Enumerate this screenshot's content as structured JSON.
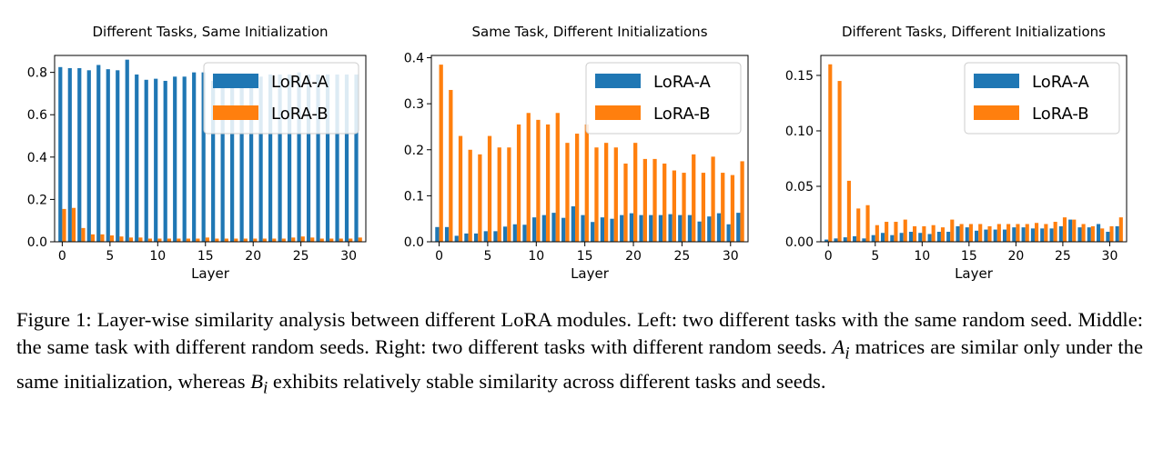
{
  "figure": {
    "caption": {
      "label": "Figure 1:",
      "text": "Layer-wise similarity analysis between different LoRA modules. Left: two different tasks with the same random seed. Middle: the same task with different random seeds. Right: two different tasks with different random seeds.",
      "a_var": "A",
      "a_sub": "i",
      "mid": " matrices are similar only under the same initialization, whereas ",
      "b_var": "B",
      "b_sub": "i",
      "end": " exhibits relatively stable similarity across different tasks and seeds."
    }
  },
  "colors": {
    "lora_a": "#1f77b4",
    "lora_b": "#ff7f0e"
  },
  "chart_data": [
    {
      "type": "bar",
      "title": "Different Tasks, Same Initialization",
      "xlabel": "Layer",
      "ylabel": "",
      "x": [
        0,
        1,
        2,
        3,
        4,
        5,
        6,
        7,
        8,
        9,
        10,
        11,
        12,
        13,
        14,
        15,
        16,
        17,
        18,
        19,
        20,
        21,
        22,
        23,
        24,
        25,
        26,
        27,
        28,
        29,
        30,
        31
      ],
      "xticks": [
        0,
        5,
        10,
        15,
        20,
        25,
        30
      ],
      "xtick_labels": [
        "0",
        "5",
        "10",
        "15",
        "20",
        "25",
        "30"
      ],
      "yticks": [
        0.0,
        0.2,
        0.4,
        0.6,
        0.8
      ],
      "ytick_labels": [
        "0.0",
        "0.2",
        "0.4",
        "0.6",
        "0.8"
      ],
      "ylim": [
        0,
        0.88
      ],
      "legend": "top-right",
      "series": [
        {
          "name": "LoRA-A",
          "color": "#1f77b4",
          "values": [
            0.825,
            0.82,
            0.82,
            0.81,
            0.835,
            0.815,
            0.81,
            0.86,
            0.79,
            0.765,
            0.77,
            0.76,
            0.78,
            0.78,
            0.8,
            0.8,
            0.76,
            0.79,
            0.79,
            0.78,
            0.78,
            0.78,
            0.79,
            0.79,
            0.79,
            0.8,
            0.79,
            0.79,
            0.79,
            0.79,
            0.79,
            0.79
          ]
        },
        {
          "name": "LoRA-B",
          "color": "#ff7f0e",
          "values": [
            0.155,
            0.16,
            0.065,
            0.035,
            0.035,
            0.03,
            0.025,
            0.02,
            0.02,
            0.015,
            0.015,
            0.015,
            0.015,
            0.015,
            0.015,
            0.02,
            0.015,
            0.015,
            0.015,
            0.015,
            0.015,
            0.015,
            0.015,
            0.015,
            0.02,
            0.025,
            0.02,
            0.015,
            0.015,
            0.015,
            0.015,
            0.02
          ]
        }
      ]
    },
    {
      "type": "bar",
      "title": "Same Task, Different Initializations",
      "xlabel": "Layer",
      "ylabel": "",
      "x": [
        0,
        1,
        2,
        3,
        4,
        5,
        6,
        7,
        8,
        9,
        10,
        11,
        12,
        13,
        14,
        15,
        16,
        17,
        18,
        19,
        20,
        21,
        22,
        23,
        24,
        25,
        26,
        27,
        28,
        29,
        30,
        31
      ],
      "xticks": [
        0,
        5,
        10,
        15,
        20,
        25,
        30
      ],
      "xtick_labels": [
        "0",
        "5",
        "10",
        "15",
        "20",
        "25",
        "30"
      ],
      "yticks": [
        0.0,
        0.1,
        0.2,
        0.3,
        0.4
      ],
      "ytick_labels": [
        "0.0",
        "0.1",
        "0.2",
        "0.3",
        "0.4"
      ],
      "ylim": [
        0,
        0.405
      ],
      "legend": "top-right",
      "series": [
        {
          "name": "LoRA-A",
          "color": "#1f77b4",
          "values": [
            0.032,
            0.032,
            0.013,
            0.018,
            0.018,
            0.023,
            0.023,
            0.033,
            0.038,
            0.037,
            0.053,
            0.058,
            0.063,
            0.052,
            0.077,
            0.058,
            0.043,
            0.053,
            0.05,
            0.058,
            0.062,
            0.058,
            0.058,
            0.058,
            0.06,
            0.058,
            0.058,
            0.044,
            0.055,
            0.062,
            0.038,
            0.063
          ]
        },
        {
          "name": "LoRA-B",
          "color": "#ff7f0e",
          "values": [
            0.385,
            0.33,
            0.23,
            0.2,
            0.19,
            0.23,
            0.205,
            0.205,
            0.255,
            0.28,
            0.265,
            0.255,
            0.28,
            0.215,
            0.235,
            0.255,
            0.205,
            0.215,
            0.205,
            0.17,
            0.215,
            0.18,
            0.18,
            0.17,
            0.155,
            0.15,
            0.19,
            0.15,
            0.185,
            0.15,
            0.145,
            0.175
          ]
        }
      ]
    },
    {
      "type": "bar",
      "title": "Different Tasks, Different Initializations",
      "xlabel": "Layer",
      "ylabel": "",
      "x": [
        0,
        1,
        2,
        3,
        4,
        5,
        6,
        7,
        8,
        9,
        10,
        11,
        12,
        13,
        14,
        15,
        16,
        17,
        18,
        19,
        20,
        21,
        22,
        23,
        24,
        25,
        26,
        27,
        28,
        29,
        30,
        31
      ],
      "xticks": [
        0,
        5,
        10,
        15,
        20,
        25,
        30
      ],
      "xtick_labels": [
        "0",
        "5",
        "10",
        "15",
        "20",
        "25",
        "30"
      ],
      "yticks": [
        0.0,
        0.05,
        0.1,
        0.15
      ],
      "ytick_labels": [
        "0.00",
        "0.05",
        "0.10",
        "0.15"
      ],
      "ylim": [
        0,
        0.168
      ],
      "legend": "top-right",
      "series": [
        {
          "name": "LoRA-A",
          "color": "#1f77b4",
          "values": [
            0.002,
            0.003,
            0.004,
            0.005,
            0.003,
            0.006,
            0.008,
            0.006,
            0.008,
            0.009,
            0.008,
            0.007,
            0.009,
            0.009,
            0.014,
            0.013,
            0.01,
            0.011,
            0.011,
            0.011,
            0.013,
            0.013,
            0.012,
            0.012,
            0.012,
            0.014,
            0.02,
            0.013,
            0.013,
            0.016,
            0.009,
            0.014
          ]
        },
        {
          "name": "LoRA-B",
          "color": "#ff7f0e",
          "values": [
            0.16,
            0.145,
            0.055,
            0.03,
            0.033,
            0.015,
            0.018,
            0.018,
            0.02,
            0.014,
            0.014,
            0.015,
            0.013,
            0.02,
            0.016,
            0.016,
            0.016,
            0.014,
            0.016,
            0.016,
            0.016,
            0.016,
            0.017,
            0.016,
            0.018,
            0.022,
            0.02,
            0.016,
            0.014,
            0.012,
            0.014,
            0.022
          ]
        }
      ]
    }
  ]
}
